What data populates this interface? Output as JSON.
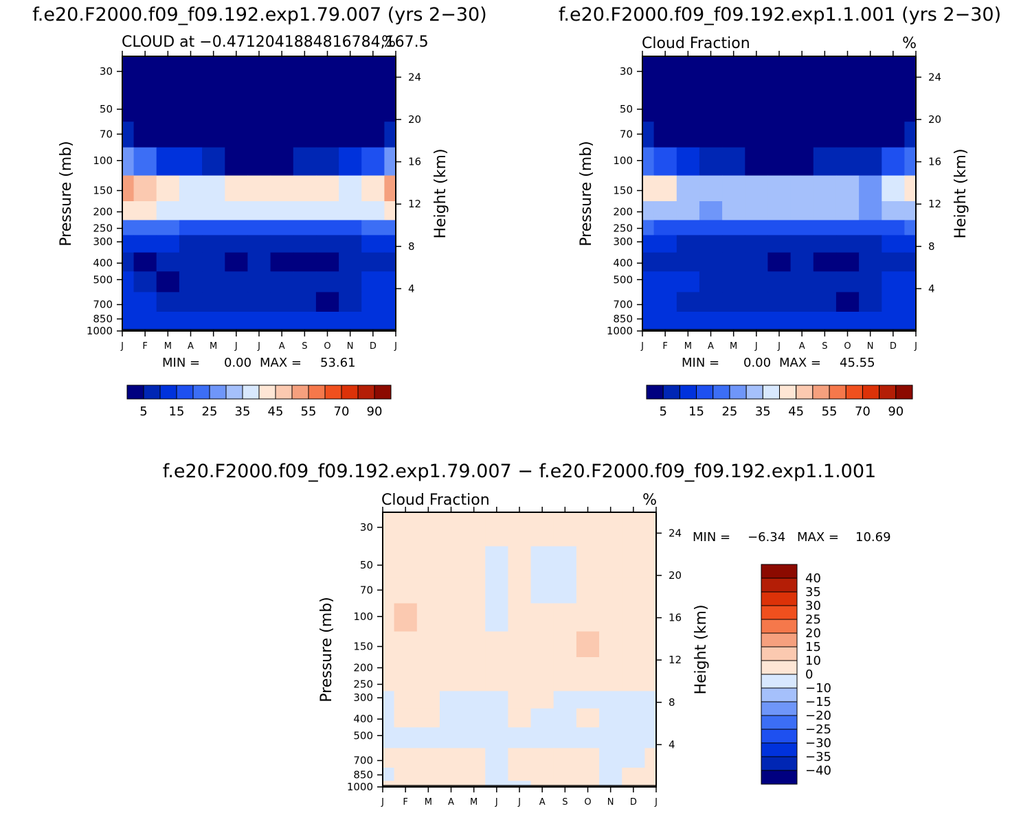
{
  "colors": {
    "levels": [
      "#000080",
      "#0026b4",
      "#0032dc",
      "#1e50f0",
      "#3c6ef5",
      "#6f96f9",
      "#a5c0fb",
      "#d8e8fe",
      "#fee6d5",
      "#fbc9b0",
      "#f5a07e",
      "#f5784b",
      "#f0501e",
      "#dc3208",
      "#b41e06",
      "#8c0a00"
    ],
    "frame": "#000000",
    "background": "#ffffff"
  },
  "chart_data": [
    {
      "id": "panel1",
      "type": "contour",
      "main_title": "f.e20.F2000.f09_f09.192.exp1.79.007 (yrs 2−30)",
      "left_title": "CLOUD at −0.4712041884816784,167.5",
      "units": "%",
      "ylabel": "Pressure (mb)",
      "ylabel_right": "Height (km)",
      "pressure_ticks": [
        "30",
        "50",
        "70",
        "100",
        "150",
        "200",
        "250",
        "300",
        "400",
        "500",
        "700",
        "850",
        "1000"
      ],
      "height_ticks": [
        "24",
        "20",
        "16",
        "12",
        "8",
        "4"
      ],
      "months": [
        "J",
        "F",
        "M",
        "A",
        "M",
        "J",
        "J",
        "A",
        "S",
        "O",
        "N",
        "D",
        "J"
      ],
      "min_label": "MIN = ",
      "min_value": "0.00",
      "max_label": "MAX = ",
      "max_value": "53.61",
      "grid_levels": [
        30,
        50,
        70,
        100,
        150,
        200,
        250,
        300,
        400,
        500,
        700,
        850,
        1000
      ],
      "grid_values": [
        [
          0,
          0,
          0,
          0,
          0,
          0,
          0,
          0,
          0,
          0,
          0,
          0,
          0
        ],
        [
          0,
          0,
          0,
          0,
          0,
          0,
          0,
          0,
          0,
          0,
          0,
          0,
          0
        ],
        [
          8,
          3,
          0,
          0,
          0,
          0,
          0,
          0,
          0,
          0,
          0,
          0,
          8
        ],
        [
          28,
          20,
          14,
          10,
          6,
          4,
          4,
          4,
          5,
          6,
          10,
          18,
          28
        ],
        [
          52,
          46,
          40,
          37,
          38,
          41,
          43,
          42,
          41,
          40,
          37,
          44,
          52
        ],
        [
          41,
          40,
          38,
          37,
          37,
          36,
          36,
          36,
          37,
          37,
          35,
          38,
          41
        ],
        [
          22,
          21,
          20,
          19,
          19,
          18,
          18,
          18,
          19,
          19,
          18,
          20,
          22
        ],
        [
          14,
          12,
          10,
          8,
          8,
          8,
          8,
          7,
          8,
          8,
          8,
          11,
          14
        ],
        [
          9,
          4,
          7,
          9,
          7,
          3,
          7,
          4,
          2,
          2,
          7,
          9,
          9
        ],
        [
          10,
          7,
          4,
          9,
          9,
          8,
          9,
          9,
          7,
          7,
          9,
          10,
          10
        ],
        [
          11,
          10,
          9,
          9,
          9,
          9,
          9,
          9,
          9,
          4,
          8,
          11,
          11
        ],
        [
          12,
          11,
          10,
          10,
          10,
          10,
          10,
          10,
          10,
          10,
          11,
          12,
          12
        ],
        [
          14,
          13,
          13,
          13,
          13,
          13,
          13,
          13,
          13,
          13,
          13,
          13,
          14
        ]
      ]
    },
    {
      "id": "panel2",
      "type": "contour",
      "main_title": "f.e20.F2000.f09_f09.192.exp1.1.001 (yrs 2−30)",
      "left_title": "Cloud Fraction",
      "units": "%",
      "ylabel": "Pressure (mb)",
      "ylabel_right": "Height (km)",
      "pressure_ticks": [
        "30",
        "50",
        "70",
        "100",
        "150",
        "200",
        "250",
        "300",
        "400",
        "500",
        "700",
        "850",
        "1000"
      ],
      "height_ticks": [
        "24",
        "20",
        "16",
        "12",
        "8",
        "4"
      ],
      "months": [
        "J",
        "F",
        "M",
        "A",
        "M",
        "J",
        "J",
        "A",
        "S",
        "O",
        "N",
        "D",
        "J"
      ],
      "min_label": "MIN = ",
      "min_value": "0.00",
      "max_label": "MAX = ",
      "max_value": "45.55",
      "grid_levels": [
        30,
        50,
        70,
        100,
        150,
        200,
        250,
        300,
        400,
        500,
        700,
        850,
        1000
      ],
      "grid_values": [
        [
          0,
          0,
          0,
          0,
          0,
          0,
          0,
          0,
          0,
          0,
          0,
          0,
          0
        ],
        [
          0,
          0,
          0,
          0,
          0,
          0,
          0,
          0,
          0,
          0,
          0,
          0,
          0
        ],
        [
          6,
          2,
          0,
          0,
          0,
          0,
          0,
          0,
          0,
          0,
          0,
          0,
          6
        ],
        [
          24,
          18,
          12,
          9,
          6,
          4,
          4,
          4,
          5,
          6,
          9,
          15,
          24
        ],
        [
          41,
          44,
          33,
          30,
          30,
          31,
          31,
          32,
          33,
          30,
          27,
          36,
          41
        ],
        [
          33,
          32,
          30,
          29,
          30,
          33,
          31,
          34,
          31,
          30,
          28,
          32,
          33
        ],
        [
          20,
          19,
          18,
          17,
          17,
          17,
          17,
          17,
          17,
          17,
          17,
          19,
          20
        ],
        [
          12,
          10,
          8,
          7,
          7,
          7,
          7,
          7,
          7,
          7,
          7,
          10,
          12
        ],
        [
          9,
          7,
          7,
          8,
          7,
          7,
          3,
          6,
          4,
          3,
          7,
          9,
          9
        ],
        [
          14,
          13,
          10,
          8,
          8,
          8,
          8,
          8,
          7,
          7,
          8,
          13,
          14
        ],
        [
          11,
          10,
          9,
          8,
          8,
          8,
          8,
          8,
          8,
          4,
          8,
          10,
          11
        ],
        [
          11,
          11,
          10,
          10,
          10,
          10,
          10,
          10,
          10,
          10,
          10,
          11,
          11
        ],
        [
          13,
          13,
          13,
          13,
          13,
          13,
          13,
          13,
          13,
          13,
          13,
          13,
          13
        ]
      ]
    },
    {
      "id": "colorbar1",
      "type": "colorbar",
      "labels": [
        "5",
        "15",
        "25",
        "35",
        "45",
        "55",
        "70",
        "90"
      ]
    },
    {
      "id": "colorbar2",
      "type": "colorbar",
      "labels": [
        "5",
        "15",
        "25",
        "35",
        "45",
        "55",
        "70",
        "90"
      ]
    },
    {
      "id": "panel3",
      "type": "contour",
      "main_title": "f.e20.F2000.f09_f09.192.exp1.79.007 − f.e20.F2000.f09_f09.192.exp1.1.001",
      "left_title": "Cloud Fraction",
      "units": "%",
      "ylabel": "Pressure (mb)",
      "ylabel_right": "Height (km)",
      "pressure_ticks": [
        "30",
        "50",
        "70",
        "100",
        "150",
        "200",
        "250",
        "300",
        "400",
        "500",
        "700",
        "850",
        "1000"
      ],
      "height_ticks": [
        "24",
        "20",
        "16",
        "12",
        "8",
        "4"
      ],
      "months": [
        "J",
        "F",
        "M",
        "A",
        "M",
        "J",
        "J",
        "A",
        "S",
        "O",
        "N",
        "D",
        "J"
      ],
      "min_label": "MIN = ",
      "min_value": "−6.34",
      "max_label": "MAX = ",
      "max_value": "10.69",
      "grid_levels": [
        30,
        50,
        70,
        100,
        150,
        200,
        250,
        300,
        400,
        500,
        700,
        850,
        1000
      ],
      "grid_values": [
        [
          1,
          1,
          1,
          1,
          1,
          1,
          1,
          1,
          1,
          1,
          1,
          1,
          1
        ],
        [
          1,
          1,
          1,
          1,
          1,
          -1,
          1,
          -1,
          -1,
          1,
          1,
          1,
          1
        ],
        [
          1,
          1,
          1,
          1,
          1,
          -1,
          1,
          -1,
          -1,
          1,
          1,
          1,
          1
        ],
        [
          1,
          10.5,
          1,
          1,
          1,
          -1,
          1,
          1,
          1,
          1,
          1,
          1,
          1
        ],
        [
          1,
          1,
          1,
          1,
          1,
          1,
          1,
          1,
          1,
          10.5,
          1,
          1,
          1
        ],
        [
          1,
          1,
          1,
          1,
          1,
          1,
          1,
          1,
          1,
          1,
          1,
          1,
          1
        ],
        [
          1,
          1,
          1,
          1,
          1,
          1,
          1,
          1,
          1,
          1,
          1,
          1,
          1
        ],
        [
          -1,
          1,
          1,
          -1,
          -1,
          -1,
          1,
          1,
          -1,
          -1,
          -1,
          -1,
          -1
        ],
        [
          -1,
          1,
          1,
          -1,
          -1,
          -1,
          1,
          -1,
          -1,
          1,
          -1,
          -1,
          -1
        ],
        [
          -1,
          -1,
          -1,
          -1,
          -1,
          -1,
          -1,
          -1,
          -1,
          -1,
          -1,
          -1,
          -1
        ],
        [
          1,
          1,
          1,
          1,
          1,
          -1,
          1,
          1,
          1,
          1,
          -1,
          -1,
          1
        ],
        [
          -1,
          1,
          1,
          1,
          1,
          -1,
          1,
          1,
          1,
          1,
          -1,
          1,
          1
        ],
        [
          1,
          1,
          1,
          1,
          1,
          -1,
          -1,
          1,
          1,
          1,
          -1,
          1,
          1
        ]
      ]
    },
    {
      "id": "colorbar3",
      "type": "colorbar",
      "labels": [
        "40",
        "35",
        "30",
        "25",
        "20",
        "15",
        "10",
        "0",
        "−10",
        "−15",
        "−20",
        "−25",
        "−30",
        "−35",
        "−40"
      ]
    }
  ]
}
